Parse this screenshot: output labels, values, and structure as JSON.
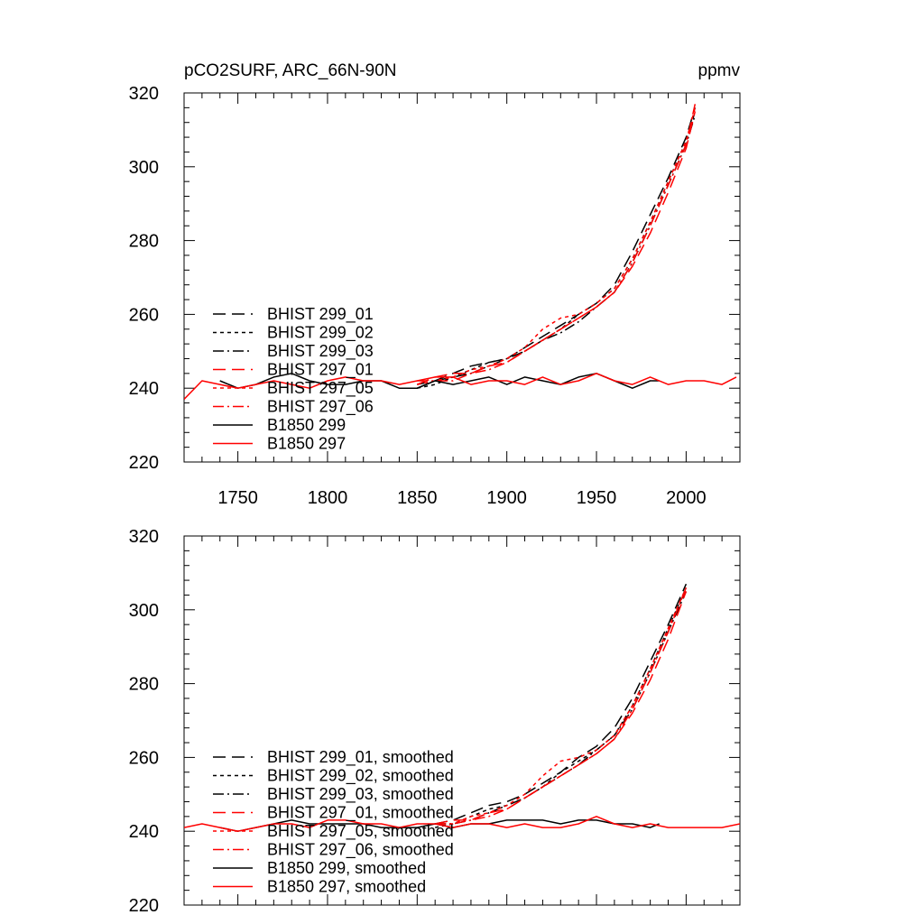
{
  "figure": {
    "title_left": "pCO2SURF, ARC_66N-90N",
    "title_right": "ppmv"
  },
  "styles": {
    "BHIST 299_01": {
      "color": "#000000",
      "dash": "14,7"
    },
    "BHIST 299_02": {
      "color": "#000000",
      "dash": "4,4"
    },
    "BHIST 299_03": {
      "color": "#000000",
      "dash": "12,4,2,4"
    },
    "BHIST 297_01": {
      "color": "#ff0000",
      "dash": "14,7"
    },
    "BHIST 297_05": {
      "color": "#ff0000",
      "dash": "4,4"
    },
    "BHIST 297_06": {
      "color": "#ff0000",
      "dash": "12,4,2,4"
    },
    "B1850 299": {
      "color": "#000000",
      "dash": ""
    },
    "B1850 297": {
      "color": "#ff0000",
      "dash": ""
    }
  },
  "chart_data": [
    {
      "type": "line",
      "title": "pCO2SURF, ARC_66N-90N",
      "units": "ppmv",
      "xlim": [
        1720,
        2030
      ],
      "ylim": [
        220,
        320
      ],
      "xticks": [
        1750,
        1800,
        1850,
        1900,
        1950,
        2000
      ],
      "yticks": [
        220,
        240,
        260,
        280,
        300,
        320
      ],
      "show_x_tick_labels": true,
      "grid": false,
      "legend_position": "lower-left",
      "series": [
        {
          "name": "BHIST 299_01",
          "style": "BHIST 299_01",
          "x": [
            1850,
            1860,
            1870,
            1880,
            1890,
            1900,
            1910,
            1920,
            1930,
            1940,
            1950,
            1960,
            1970,
            1980,
            1990,
            2000,
            2005
          ],
          "y": [
            240,
            242,
            244,
            246,
            247,
            248,
            251,
            254,
            257,
            260,
            263,
            268,
            277,
            287,
            297,
            308,
            316
          ]
        },
        {
          "name": "BHIST 299_02",
          "style": "BHIST 299_02",
          "x": [
            1850,
            1860,
            1870,
            1880,
            1890,
            1900,
            1910,
            1920,
            1930,
            1940,
            1950,
            1960,
            1970,
            1980,
            1990,
            2000,
            2005
          ],
          "y": [
            240,
            241,
            243,
            245,
            247,
            248,
            250,
            253,
            256,
            260,
            263,
            267,
            275,
            285,
            296,
            307,
            315
          ]
        },
        {
          "name": "BHIST 299_03",
          "style": "BHIST 299_03",
          "x": [
            1850,
            1860,
            1870,
            1880,
            1890,
            1900,
            1910,
            1920,
            1930,
            1940,
            1950,
            1960,
            1970,
            1980,
            1990,
            2000,
            2005
          ],
          "y": [
            241,
            242,
            243,
            244,
            246,
            248,
            250,
            253,
            255,
            258,
            262,
            266,
            274,
            284,
            295,
            306,
            314
          ]
        },
        {
          "name": "BHIST 297_01",
          "style": "BHIST 297_01",
          "x": [
            1850,
            1860,
            1870,
            1880,
            1890,
            1900,
            1910,
            1920,
            1930,
            1940,
            1950,
            1960,
            1970,
            1980,
            1990,
            2000,
            2005
          ],
          "y": [
            241,
            243,
            244,
            244,
            246,
            247,
            250,
            253,
            256,
            259,
            262,
            266,
            273,
            282,
            293,
            305,
            315
          ]
        },
        {
          "name": "BHIST 297_05",
          "style": "BHIST 297_05",
          "x": [
            1850,
            1860,
            1870,
            1880,
            1890,
            1900,
            1910,
            1920,
            1930,
            1940,
            1950,
            1960,
            1970,
            1980,
            1990,
            2000,
            2005
          ],
          "y": [
            241,
            242,
            243,
            245,
            246,
            248,
            251,
            256,
            259,
            260,
            263,
            267,
            275,
            285,
            296,
            307,
            316
          ]
        },
        {
          "name": "BHIST 297_06",
          "style": "BHIST 297_06",
          "x": [
            1850,
            1860,
            1870,
            1880,
            1890,
            1900,
            1910,
            1920,
            1930,
            1940,
            1950,
            1960,
            1970,
            1980,
            1990,
            2000,
            2005
          ],
          "y": [
            242,
            242,
            242,
            244,
            245,
            247,
            250,
            253,
            256,
            259,
            262,
            266,
            274,
            284,
            295,
            306,
            317
          ]
        },
        {
          "name": "B1850 299",
          "style": "B1850 299",
          "x": [
            1740,
            1750,
            1760,
            1770,
            1780,
            1790,
            1800,
            1810,
            1820,
            1830,
            1840,
            1850,
            1860,
            1870,
            1880,
            1890,
            1900,
            1910,
            1920,
            1930,
            1940,
            1950,
            1960,
            1970,
            1980,
            1985
          ],
          "y": [
            242,
            240,
            241,
            243,
            244,
            242,
            241,
            241,
            242,
            242,
            240,
            240,
            242,
            241,
            242,
            243,
            241,
            243,
            242,
            241,
            243,
            244,
            242,
            240,
            242,
            242
          ]
        },
        {
          "name": "B1850 297",
          "style": "B1850 297",
          "x": [
            1720,
            1730,
            1740,
            1750,
            1760,
            1770,
            1780,
            1790,
            1800,
            1810,
            1820,
            1830,
            1840,
            1850,
            1860,
            1870,
            1880,
            1890,
            1900,
            1910,
            1920,
            1930,
            1940,
            1950,
            1960,
            1970,
            1980,
            1990,
            2000,
            2010,
            2020,
            2028
          ],
          "y": [
            237,
            242,
            241,
            240,
            241,
            242,
            241,
            240,
            242,
            243,
            242,
            242,
            241,
            242,
            243,
            243,
            241,
            242,
            242,
            241,
            243,
            241,
            242,
            244,
            242,
            241,
            243,
            241,
            242,
            242,
            241,
            243
          ]
        }
      ]
    },
    {
      "type": "line",
      "xlim": [
        1720,
        2030
      ],
      "ylim": [
        220,
        320
      ],
      "xticks": [
        1750,
        1800,
        1850,
        1900,
        1950,
        2000
      ],
      "yticks": [
        220,
        240,
        260,
        280,
        300,
        320
      ],
      "show_x_tick_labels": false,
      "grid": false,
      "legend_position": "lower-left",
      "series": [
        {
          "name": "BHIST 299_01, smoothed",
          "style": "BHIST 299_01",
          "x": [
            1860,
            1870,
            1880,
            1890,
            1900,
            1910,
            1920,
            1930,
            1940,
            1950,
            1960,
            1970,
            1980,
            1990,
            2000
          ],
          "y": [
            242,
            243,
            245,
            247,
            248,
            250,
            253,
            256,
            260,
            263,
            268,
            276,
            286,
            296,
            307
          ]
        },
        {
          "name": "BHIST 299_02, smoothed",
          "style": "BHIST 299_02",
          "x": [
            1860,
            1870,
            1880,
            1890,
            1900,
            1910,
            1920,
            1930,
            1940,
            1950,
            1960,
            1970,
            1980,
            1990,
            2000
          ],
          "y": [
            241,
            242,
            244,
            246,
            247,
            249,
            252,
            256,
            259,
            262,
            266,
            274,
            284,
            295,
            306
          ]
        },
        {
          "name": "BHIST 299_03, smoothed",
          "style": "BHIST 299_03",
          "x": [
            1860,
            1870,
            1880,
            1890,
            1900,
            1910,
            1920,
            1930,
            1940,
            1950,
            1960,
            1970,
            1980,
            1990,
            2000
          ],
          "y": [
            242,
            242,
            243,
            245,
            247,
            249,
            252,
            255,
            258,
            262,
            266,
            273,
            283,
            294,
            305
          ]
        },
        {
          "name": "BHIST 297_01, smoothed",
          "style": "BHIST 297_01",
          "x": [
            1860,
            1870,
            1880,
            1890,
            1900,
            1910,
            1920,
            1930,
            1940,
            1950,
            1960,
            1970,
            1980,
            1990,
            2000
          ],
          "y": [
            242,
            243,
            243,
            245,
            246,
            249,
            252,
            255,
            258,
            261,
            265,
            272,
            281,
            292,
            305
          ]
        },
        {
          "name": "BHIST 297_05, smoothed",
          "style": "BHIST 297_05",
          "x": [
            1860,
            1870,
            1880,
            1890,
            1900,
            1910,
            1920,
            1930,
            1940,
            1950,
            1960,
            1970,
            1980,
            1990,
            2000
          ],
          "y": [
            242,
            242,
            244,
            245,
            247,
            250,
            255,
            259,
            260,
            262,
            266,
            274,
            284,
            295,
            306
          ]
        },
        {
          "name": "BHIST 297_06, smoothed",
          "style": "BHIST 297_06",
          "x": [
            1860,
            1870,
            1880,
            1890,
            1900,
            1910,
            1920,
            1930,
            1940,
            1950,
            1960,
            1970,
            1980,
            1990,
            2000
          ],
          "y": [
            242,
            242,
            243,
            244,
            246,
            249,
            252,
            255,
            258,
            261,
            265,
            273,
            283,
            294,
            306
          ]
        },
        {
          "name": "B1850 299, smoothed",
          "style": "B1850 299",
          "x": [
            1740,
            1750,
            1760,
            1770,
            1780,
            1790,
            1800,
            1810,
            1820,
            1830,
            1840,
            1850,
            1860,
            1870,
            1880,
            1890,
            1900,
            1910,
            1920,
            1930,
            1940,
            1950,
            1960,
            1970,
            1980,
            1985
          ],
          "y": [
            241,
            240,
            241,
            242,
            243,
            242,
            242,
            242,
            242,
            241,
            241,
            241,
            242,
            241,
            242,
            242,
            243,
            243,
            243,
            242,
            243,
            243,
            242,
            242,
            241,
            242
          ]
        },
        {
          "name": "B1850 297, smoothed",
          "style": "B1850 297",
          "x": [
            1720,
            1730,
            1740,
            1750,
            1760,
            1770,
            1780,
            1790,
            1800,
            1810,
            1820,
            1830,
            1840,
            1850,
            1860,
            1870,
            1880,
            1890,
            1900,
            1910,
            1920,
            1930,
            1940,
            1950,
            1960,
            1970,
            1980,
            1990,
            2000,
            2010,
            2020,
            2030
          ],
          "y": [
            241,
            242,
            241,
            240,
            241,
            242,
            242,
            241,
            243,
            243,
            242,
            242,
            241,
            242,
            242,
            241,
            242,
            242,
            241,
            242,
            241,
            241,
            242,
            244,
            242,
            241,
            242,
            241,
            241,
            241,
            241,
            242
          ]
        }
      ]
    }
  ]
}
